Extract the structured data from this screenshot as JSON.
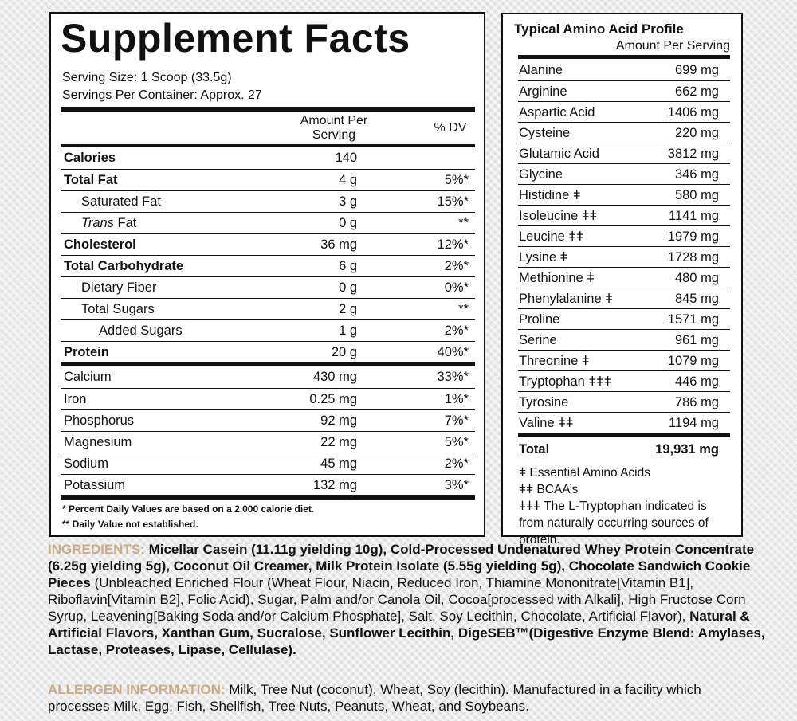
{
  "supplement_facts": {
    "title": "Supplement Facts",
    "serving_size": "Serving Size: 1 Scoop (33.5g)",
    "servings_per_container": "Servings Per Container: Approx. 27",
    "header": {
      "amount": "Amount Per Serving",
      "dv": "% DV"
    },
    "macros": [
      {
        "name": "Calories",
        "amount": "140",
        "bold": true,
        "indent": 0
      },
      {
        "name": "Total Fat",
        "amount": "4 g",
        "dv": "5%*",
        "bold": true,
        "indent": 0
      },
      {
        "name": "Saturated Fat",
        "amount": "3 g",
        "dv": "15%*",
        "indent": 1
      },
      {
        "italic_prefix": "Trans",
        "name": " Fat",
        "amount": "0 g",
        "dv": "**",
        "indent": 1
      },
      {
        "name": "Cholesterol",
        "amount": "36 mg",
        "dv": "12%*",
        "bold": true,
        "indent": 0
      },
      {
        "name": "Total Carbohydrate",
        "amount": "6 g",
        "dv": "2%*",
        "bold": true,
        "indent": 0
      },
      {
        "name": "Dietary Fiber",
        "amount": "0 g",
        "dv": "0%*",
        "indent": 1
      },
      {
        "name": "Total Sugars",
        "amount": "2 g",
        "dv": "**",
        "indent": 1
      },
      {
        "name": "Added Sugars",
        "amount": "1 g",
        "dv": "2%*",
        "indent": 2
      },
      {
        "name": "Protein",
        "amount": "20 g",
        "dv": "40%*",
        "bold": true,
        "indent": 0
      }
    ],
    "minerals": [
      {
        "name": "Calcium",
        "amount": "430 mg",
        "dv": "33%*"
      },
      {
        "name": "Iron",
        "amount": "0.25 mg",
        "dv": "1%*"
      },
      {
        "name": "Phosphorus",
        "amount": "92 mg",
        "dv": "7%*"
      },
      {
        "name": "Magnesium",
        "amount": "22 mg",
        "dv": "5%*"
      },
      {
        "name": "Sodium",
        "amount": "45 mg",
        "dv": "2%*"
      },
      {
        "name": "Potassium",
        "amount": "132 mg",
        "dv": "3%*"
      }
    ],
    "footnotes": [
      "* Percent Daily Values are based on a 2,000 calorie diet.",
      "** Daily Value not established."
    ]
  },
  "amino_profile": {
    "title": "Typical Amino Acid Profile",
    "subtitle": "Amount Per Serving",
    "rows": [
      {
        "name": "Alanine",
        "amount": "699 mg"
      },
      {
        "name": "Arginine",
        "amount": "662 mg"
      },
      {
        "name": "Aspartic Acid",
        "amount": "1406 mg"
      },
      {
        "name": "Cysteine",
        "amount": "220 mg"
      },
      {
        "name": "Glutamic Acid",
        "amount": "3812 mg"
      },
      {
        "name": "Glycine",
        "amount": "346 mg"
      },
      {
        "name": "Histidine ǂ",
        "amount": "580 mg"
      },
      {
        "name": "Isoleucine ǂǂ",
        "amount": "1141 mg"
      },
      {
        "name": "Leucine ǂǂ",
        "amount": "1979 mg"
      },
      {
        "name": "Lysine ǂ",
        "amount": "1728 mg"
      },
      {
        "name": "Methionine ǂ",
        "amount": "480 mg"
      },
      {
        "name": "Phenylalanine ǂ",
        "amount": "845 mg"
      },
      {
        "name": "Proline",
        "amount": "1571 mg"
      },
      {
        "name": "Serine",
        "amount": "961 mg"
      },
      {
        "name": "Threonine ǂ",
        "amount": "1079 mg"
      },
      {
        "name": "Tryptophan ǂǂǂ",
        "amount": "446 mg"
      },
      {
        "name": "Tyrosine",
        "amount": "786 mg"
      },
      {
        "name": "Valine ǂǂ",
        "amount": "1194 mg"
      }
    ],
    "total": {
      "label": "Total",
      "amount": "19,931 mg"
    },
    "legend": [
      "ǂ Essential Amino Acids",
      "ǂǂ BCAA’s",
      "ǂǂǂ The L-Tryptophan indicated is from naturally occurring sources of protein."
    ]
  },
  "ingredients": {
    "label": "INGREDIENTS:",
    "segments": [
      {
        "text": "Micellar Casein (11.11g yielding 10g), Cold-Processed Undenatured Whey Protein Concentrate (6.25g yielding 5g), Coconut Oil Creamer, Milk Protein Isolate (5.55g yielding 5g), Chocolate Sandwich Cookie Pieces",
        "bold": true
      },
      {
        "text": " (Unbleached Enriched Flour (Wheat Flour, Niacin, Reduced Iron, Thiamine Mononitrate[Vitamin B1], Riboflavin[Vitamin B2], Folic Acid), Sugar, Palm and/or Canola Oil, Cocoa[processed with Alkali], High Fructose Corn Syrup, Leavening[Baking Soda and/or Calcium Phosphate], Salt, Soy Lecithin, Chocolate, Artificial Flavor), ",
        "bold": false
      },
      {
        "text": "Natural & Artificial Flavors, Xanthan Gum, Sucralose, Sunflower Lecithin, DigeSEB™(Digestive Enzyme Blend: Amylases, Lactase, Proteases, Lipase, Cellulase).",
        "bold": true
      }
    ]
  },
  "allergen": {
    "label": "ALLERGEN INFORMATION:",
    "text": " Milk, Tree Nut (coconut), Wheat, Soy (lecithin). Manufactured in a facility which processes Milk, Egg, Fish, Shellfish, Tree Nuts, Peanuts, Wheat, and Soybeans."
  }
}
